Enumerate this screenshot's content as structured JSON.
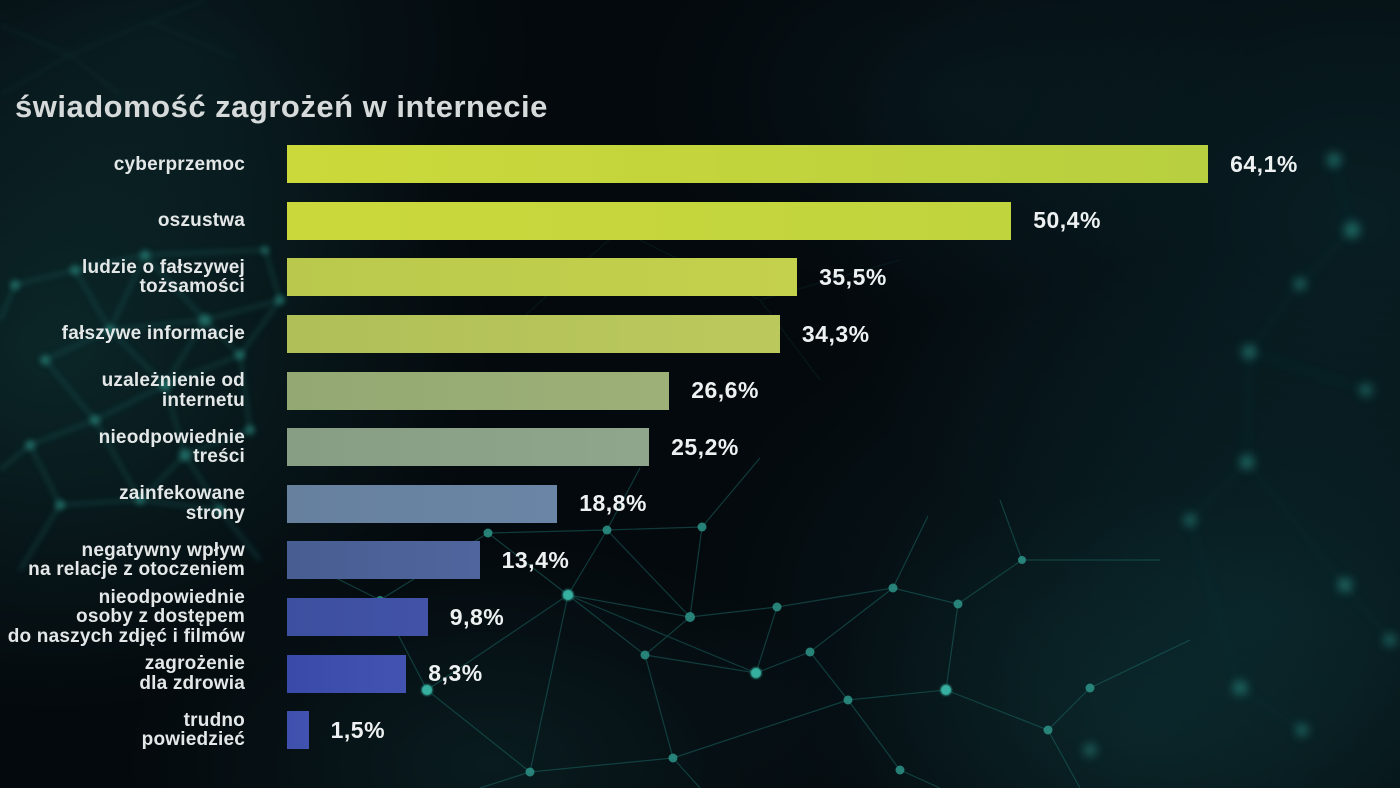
{
  "title": "świadomość zagrożeń w internecie",
  "title_color": "#d6dada",
  "chart_data": {
    "type": "bar",
    "orientation": "horizontal",
    "title": "świadomość zagrożeń w internecie",
    "xlabel": "",
    "ylabel": "",
    "unit": "%",
    "decimal_separator": ",",
    "xlim": [
      0,
      70
    ],
    "grid": false,
    "legend": false,
    "categories": [
      "cyberprzemoc",
      "oszustwa",
      "ludzie o fałszywej tożsamości",
      "fałszywe informacje",
      "uzależnienie od internetu",
      "nieodpowiednie treści",
      "zainfekowane strony",
      "negatywny wpływ na relacje z otoczeniem",
      "nieodpowiednie osoby z dostępem do naszych zdjęć i filmów",
      "zagrożenie dla zdrowia",
      "trudno powiedzieć"
    ],
    "values": [
      64.1,
      50.4,
      35.5,
      34.3,
      26.6,
      25.2,
      18.8,
      13.4,
      9.8,
      8.3,
      1.5
    ],
    "items": [
      {
        "label": "cyberprzemoc",
        "value": 64.1,
        "value_label": "64,1%",
        "bar_color_left": "#ccd93a",
        "bar_color_right": "#b8cf3f"
      },
      {
        "label": "oszustwa",
        "value": 50.4,
        "value_label": "50,4%",
        "bar_color_left": "#cbd83b",
        "bar_color_right": "#c0d43e"
      },
      {
        "label": "ludzie o fałszywej\ntożsamości",
        "value": 35.5,
        "value_label": "35,5%",
        "bar_color_left": "#bac94d",
        "bar_color_right": "#c4d14c"
      },
      {
        "label": "fałszywe informacje",
        "value": 34.3,
        "value_label": "34,3%",
        "bar_color_left": "#b0bf58",
        "bar_color_right": "#bbc95c"
      },
      {
        "label": "uzależnienie od\ninternetu",
        "value": 26.6,
        "value_label": "26,6%",
        "bar_color_left": "#93a873",
        "bar_color_right": "#9db077"
      },
      {
        "label": "nieodpowiednie\ntreści",
        "value": 25.2,
        "value_label": "25,2%",
        "bar_color_left": "#879e84",
        "bar_color_right": "#90a68c"
      },
      {
        "label": "zainfekowane\nstrony",
        "value": 18.8,
        "value_label": "18,8%",
        "bar_color_left": "#66809e",
        "bar_color_right": "#6b85a6"
      },
      {
        "label": "negatywny wpływ\nna relacje z otoczeniem",
        "value": 13.4,
        "value_label": "13,4%",
        "bar_color_left": "#485e92",
        "bar_color_right": "#50659d"
      },
      {
        "label": "nieodpowiednie\nosoby z dostępem\ndo naszych zdjęć i filmów",
        "value": 9.8,
        "value_label": "9,8%",
        "bar_color_left": "#3d4f9f",
        "bar_color_right": "#4253a8"
      },
      {
        "label": "zagrożenie\ndla zdrowia",
        "value": 8.3,
        "value_label": "8,3%",
        "bar_color_left": "#3a4aa8",
        "bar_color_right": "#4253b1"
      },
      {
        "label": "trudno\npowiedzieć",
        "value": 1.5,
        "value_label": "1,5%",
        "bar_color_left": "#3f50ad",
        "bar_color_right": "#4152b0"
      }
    ]
  },
  "background": {
    "base_color": "#04090d",
    "mesh_line_color": "#1c6b67",
    "mesh_node_color": "#2d9488",
    "accent_node_color": "#39b5a5"
  }
}
